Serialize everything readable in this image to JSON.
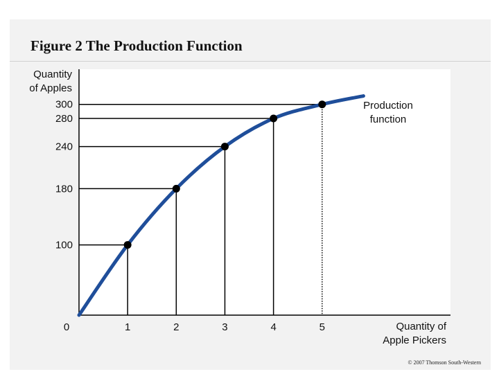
{
  "figure": {
    "title": "Figure 2 The Production Function",
    "copyright": "© 2007 Thomson South-Western"
  },
  "chart_data": {
    "type": "line",
    "title": "Figure 2 The Production Function",
    "ylabel_lines": [
      "Quantity",
      "of Apples"
    ],
    "xlabel_lines": [
      "Quantity of",
      "Apple Pickers"
    ],
    "series": [
      {
        "name": "Production function",
        "name_lines": [
          "Production",
          "function"
        ],
        "x": [
          0,
          1,
          2,
          3,
          4,
          5
        ],
        "y": [
          0,
          100,
          180,
          240,
          280,
          300
        ]
      }
    ],
    "x_ticks": [
      0,
      1,
      2,
      3,
      4,
      5
    ],
    "y_ticks": [
      100,
      180,
      240,
      280,
      300
    ],
    "xlim": [
      0,
      7.64
    ],
    "ylim": [
      0,
      350
    ],
    "legend": "curve label near top-right",
    "grid": false,
    "colors": {
      "line": "#1f4e9a",
      "points": "#000000",
      "guides": "#000000",
      "plot_bg": "#ffffff"
    }
  }
}
